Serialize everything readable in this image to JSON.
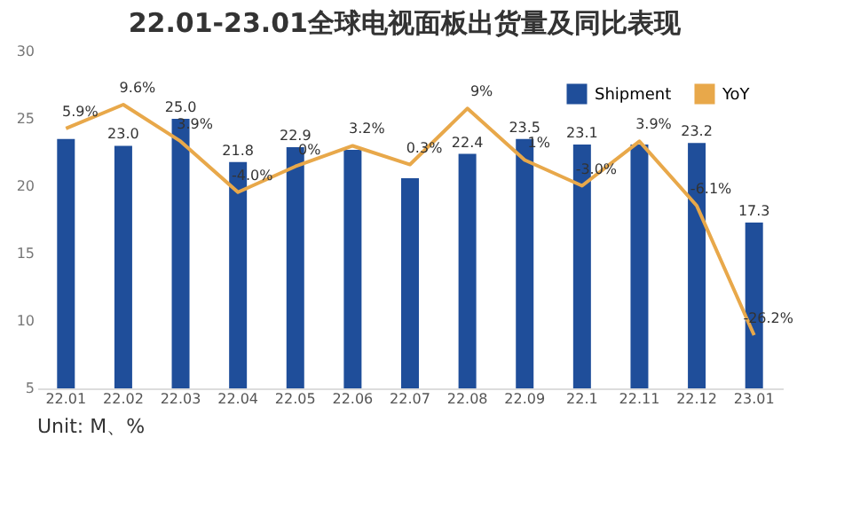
{
  "chart_data": {
    "type": "bar",
    "title": "22.01-23.01全球电视面板出货量及同比表现",
    "annotations": [
      "Unit: M、%"
    ],
    "categories": [
      "22.01",
      "22.02",
      "22.03",
      "22.04",
      "22.05",
      "22.06",
      "22.07",
      "22.08",
      "22.09",
      "22.1",
      "22.11",
      "22.12",
      "23.01"
    ],
    "series": [
      {
        "name": "Shipment",
        "color": "#1f4e9a",
        "values": [
          23.5,
          23.0,
          25.0,
          21.8,
          22.9,
          22.7,
          20.6,
          22.4,
          23.5,
          23.1,
          23.1,
          23.2,
          17.3
        ],
        "value_labels": [
          null,
          "23.0",
          "25.0",
          "21.8",
          "22.9",
          null,
          null,
          "22.4",
          "23.5",
          "23.1",
          null,
          "23.2",
          "17.3"
        ]
      },
      {
        "name": "YoY",
        "type": "line",
        "axis": "y2",
        "color": "#e8a84a",
        "values": [
          5.9,
          9.6,
          3.9,
          -4.0,
          0,
          3.2,
          0.3,
          9,
          1,
          -3.0,
          3.9,
          -6.1,
          -26.2
        ],
        "value_labels": [
          "5.9%",
          "9.6%",
          "3.9%",
          "-4.0%",
          "0%",
          "3.2%",
          "0.3%",
          "9%",
          "1%",
          "-3.0%",
          "3.9%",
          "-6.1%",
          "-26.2%"
        ]
      }
    ],
    "ylim": [
      5,
      30
    ],
    "yticks": [
      5,
      10,
      15,
      20,
      25,
      30
    ],
    "grid": false,
    "legend": "top right"
  }
}
